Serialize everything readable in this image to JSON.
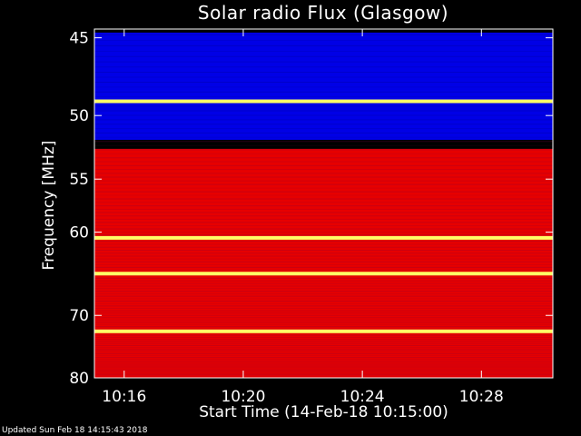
{
  "footer_text": "Updated Sun Feb 18 14:15:43 2018",
  "chart_data": {
    "type": "heatmap",
    "title": "Solar radio Flux (Glasgow)",
    "xlabel": "Start Time (14-Feb-18 10:15:00)",
    "ylabel": "Frequency [MHz]",
    "x_tick_labels": [
      "10:16",
      "10:20",
      "10:24",
      "10:28"
    ],
    "x_ticks_minutes_after_start": [
      1,
      5,
      9,
      13
    ],
    "xlim_minutes_after_start": [
      0,
      15.4
    ],
    "y_tick_labels": [
      "45",
      "50",
      "55",
      "60",
      "70",
      "80"
    ],
    "y_ticks": [
      45,
      50,
      55,
      60,
      70,
      80
    ],
    "ylim_mhz": [
      44.5,
      80
    ],
    "y_scale": "reciprocal",
    "colormap": [
      "#0000ff",
      "#ff0000",
      "#ffff66"
    ],
    "bands": [
      {
        "from": 44.7,
        "to": 51.8,
        "level": "low"
      },
      {
        "from": 52.5,
        "to": 80,
        "level": "medium"
      },
      {
        "from": 49.0,
        "to": 49.0,
        "level": "high"
      },
      {
        "from": 60.6,
        "to": 60.6,
        "level": "high"
      },
      {
        "from": 64.6,
        "to": 64.6,
        "level": "high"
      },
      {
        "from": 72.3,
        "to": 72.3,
        "level": "high"
      }
    ]
  }
}
